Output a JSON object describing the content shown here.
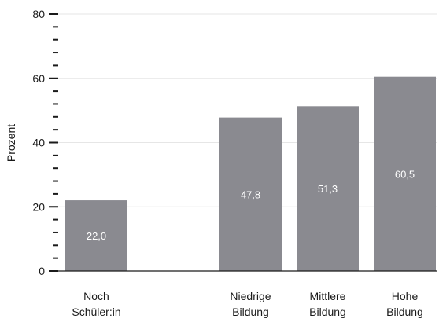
{
  "chart_data": {
    "type": "bar",
    "categories": [
      [
        "Noch",
        "Schüler:in"
      ],
      [
        "Niedrige",
        "Bildung"
      ],
      [
        "Mittlere",
        "Bildung"
      ],
      [
        "Hohe",
        "Bildung"
      ]
    ],
    "category_slots": [
      0,
      2,
      3,
      4
    ],
    "values": [
      22.0,
      47.8,
      51.3,
      60.5
    ],
    "value_labels": [
      "22,0",
      "47,8",
      "51,3",
      "60,5"
    ],
    "ylabel": "Prozent",
    "ylim": [
      0,
      80
    ],
    "yticks": [
      0,
      20,
      40,
      60,
      80
    ],
    "ytick_labels": [
      "0",
      "20",
      "40",
      "60",
      "80"
    ],
    "minor_ticks_per_major": 4,
    "grid": true,
    "colors": {
      "bar": "#8a8a90",
      "grid": "#e6e6e6",
      "axis": "#1a1a1a"
    }
  }
}
